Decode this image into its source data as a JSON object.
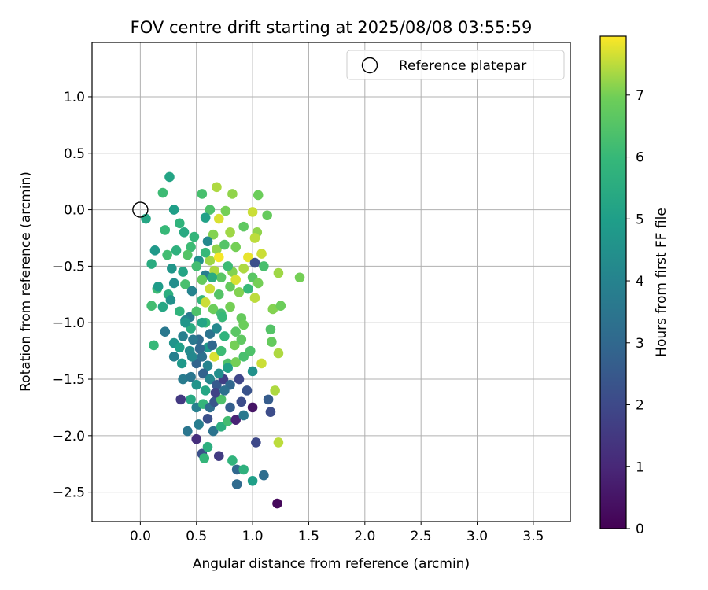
{
  "chart_data": {
    "type": "scatter",
    "title": "FOV centre drift starting at 2025/08/08 03:55:59",
    "xlabel": "Angular distance from reference (arcmin)",
    "ylabel": "Rotation from reference (arcmin)",
    "xlim": [
      -0.43,
      3.83
    ],
    "ylim": [
      -2.76,
      1.48
    ],
    "xticks": [
      "0.0",
      "0.5",
      "1.0",
      "1.5",
      "2.0",
      "2.5",
      "3.0",
      "3.5"
    ],
    "yticks": [
      "1.0",
      "0.5",
      "0.0",
      "−0.5",
      "−1.0",
      "−1.5",
      "−2.0",
      "−2.5"
    ],
    "grid": true,
    "legend": {
      "position": "top-right",
      "entries": [
        "Reference platepar"
      ]
    },
    "reference_point": {
      "x": 0.0,
      "y": 0.0
    },
    "colorbar": {
      "label": "Hours from first FF file",
      "range": [
        0,
        7.95
      ],
      "ticks": [
        "0",
        "1",
        "2",
        "3",
        "4",
        "5",
        "6",
        "7"
      ],
      "colormap": "viridis"
    },
    "points": [
      [
        0.26,
        0.29,
        5.2
      ],
      [
        0.2,
        0.15,
        6.1
      ],
      [
        0.55,
        0.14,
        6.3
      ],
      [
        0.68,
        0.2,
        7.4
      ],
      [
        0.82,
        0.14,
        7.2
      ],
      [
        1.05,
        0.13,
        6.9
      ],
      [
        0.3,
        0.0,
        5.0
      ],
      [
        0.62,
        0.0,
        6.4
      ],
      [
        0.76,
        -0.01,
        7.0
      ],
      [
        1.0,
        -0.02,
        7.6
      ],
      [
        1.13,
        -0.05,
        6.8
      ],
      [
        0.05,
        -0.08,
        5.3
      ],
      [
        0.58,
        -0.07,
        5.1
      ],
      [
        0.7,
        -0.08,
        7.7
      ],
      [
        0.35,
        -0.12,
        5.8
      ],
      [
        0.22,
        -0.18,
        6.0
      ],
      [
        0.39,
        -0.2,
        5.4
      ],
      [
        0.48,
        -0.24,
        5.9
      ],
      [
        0.65,
        -0.22,
        7.1
      ],
      [
        0.8,
        -0.2,
        7.3
      ],
      [
        0.92,
        -0.15,
        6.7
      ],
      [
        1.04,
        -0.2,
        7.2
      ],
      [
        1.02,
        -0.25,
        7.5
      ],
      [
        0.13,
        -0.36,
        4.8
      ],
      [
        0.24,
        -0.4,
        6.2
      ],
      [
        0.32,
        -0.36,
        5.7
      ],
      [
        0.45,
        -0.33,
        6.1
      ],
      [
        0.52,
        -0.45,
        4.5
      ],
      [
        0.6,
        -0.28,
        4.2
      ],
      [
        0.68,
        -0.35,
        7.2
      ],
      [
        0.75,
        -0.31,
        6.5
      ],
      [
        0.85,
        -0.33,
        7.0
      ],
      [
        0.96,
        -0.42,
        7.8
      ],
      [
        1.08,
        -0.39,
        7.6
      ],
      [
        0.1,
        -0.48,
        5.5
      ],
      [
        0.28,
        -0.52,
        4.7
      ],
      [
        0.38,
        -0.55,
        5.2
      ],
      [
        0.5,
        -0.5,
        6.2
      ],
      [
        0.58,
        -0.58,
        3.8
      ],
      [
        0.66,
        -0.54,
        7.4
      ],
      [
        0.72,
        -0.6,
        6.6
      ],
      [
        0.82,
        -0.55,
        7.1
      ],
      [
        1.02,
        -0.47,
        2.2
      ],
      [
        1.1,
        -0.5,
        6.3
      ],
      [
        1.23,
        -0.56,
        7.3
      ],
      [
        1.42,
        -0.6,
        7.0
      ],
      [
        0.15,
        -0.7,
        6.1
      ],
      [
        0.25,
        -0.75,
        5.6
      ],
      [
        0.3,
        -0.65,
        4.4
      ],
      [
        0.4,
        -0.66,
        6.3
      ],
      [
        0.46,
        -0.72,
        4.0
      ],
      [
        0.55,
        -0.8,
        5.9
      ],
      [
        0.62,
        -0.7,
        7.6
      ],
      [
        0.7,
        -0.75,
        6.5
      ],
      [
        0.8,
        -0.68,
        6.8
      ],
      [
        0.88,
        -0.73,
        7.1
      ],
      [
        0.96,
        -0.7,
        6.0
      ],
      [
        1.02,
        -0.78,
        7.5
      ],
      [
        0.1,
        -0.85,
        6.2
      ],
      [
        0.2,
        -0.86,
        5.3
      ],
      [
        0.27,
        -0.8,
        4.5
      ],
      [
        0.35,
        -0.9,
        5.8
      ],
      [
        0.44,
        -0.95,
        3.7
      ],
      [
        0.5,
        -0.9,
        6.4
      ],
      [
        0.58,
        -0.82,
        7.6
      ],
      [
        0.65,
        -0.88,
        6.9
      ],
      [
        0.72,
        -0.92,
        6.2
      ],
      [
        0.8,
        -0.86,
        7.0
      ],
      [
        0.9,
        -0.96,
        6.8
      ],
      [
        1.18,
        -0.88,
        7.1
      ],
      [
        1.25,
        -0.85,
        6.9
      ],
      [
        0.12,
        -1.2,
        6.0
      ],
      [
        0.22,
        -1.08,
        3.6
      ],
      [
        0.3,
        -1.18,
        4.6
      ],
      [
        0.38,
        -1.12,
        3.9
      ],
      [
        0.45,
        -1.05,
        5.5
      ],
      [
        0.52,
        -1.15,
        3.1
      ],
      [
        0.58,
        -1.0,
        6.0
      ],
      [
        0.62,
        -1.1,
        3.4
      ],
      [
        0.68,
        -1.05,
        4.2
      ],
      [
        0.75,
        -1.12,
        5.8
      ],
      [
        0.85,
        -1.08,
        6.6
      ],
      [
        0.92,
        -1.02,
        6.9
      ],
      [
        1.16,
        -1.06,
        6.5
      ],
      [
        1.17,
        -1.17,
        6.8
      ],
      [
        0.3,
        -1.3,
        3.9
      ],
      [
        0.37,
        -1.36,
        4.8
      ],
      [
        0.44,
        -1.25,
        4.3
      ],
      [
        0.5,
        -1.36,
        2.9
      ],
      [
        0.55,
        -1.3,
        3.3
      ],
      [
        0.6,
        -1.38,
        4.0
      ],
      [
        0.66,
        -1.3,
        7.7
      ],
      [
        0.72,
        -1.25,
        6.1
      ],
      [
        0.78,
        -1.36,
        6.4
      ],
      [
        0.85,
        -1.35,
        7.0
      ],
      [
        0.92,
        -1.3,
        6.3
      ],
      [
        1.0,
        -1.43,
        4.5
      ],
      [
        1.08,
        -1.36,
        7.6
      ],
      [
        1.23,
        -1.27,
        7.4
      ],
      [
        0.38,
        -1.5,
        3.7
      ],
      [
        0.45,
        -1.48,
        3.5
      ],
      [
        0.5,
        -1.55,
        4.6
      ],
      [
        0.56,
        -1.45,
        2.8
      ],
      [
        0.62,
        -1.5,
        4.1
      ],
      [
        0.68,
        -1.55,
        2.5
      ],
      [
        0.74,
        -1.5,
        1.7
      ],
      [
        0.8,
        -1.55,
        3.0
      ],
      [
        0.88,
        -1.5,
        1.9
      ],
      [
        0.36,
        -1.68,
        1.5
      ],
      [
        0.45,
        -1.68,
        5.4
      ],
      [
        0.5,
        -1.75,
        3.9
      ],
      [
        0.56,
        -1.72,
        5.9
      ],
      [
        0.62,
        -1.75,
        3.2
      ],
      [
        0.66,
        -1.7,
        2.4
      ],
      [
        0.72,
        -1.68,
        6.4
      ],
      [
        0.8,
        -1.75,
        2.7
      ],
      [
        0.9,
        -1.7,
        2.1
      ],
      [
        1.0,
        -1.75,
        0.5
      ],
      [
        1.14,
        -1.68,
        2.6
      ],
      [
        1.2,
        -1.6,
        7.4
      ],
      [
        0.42,
        -1.96,
        3.5
      ],
      [
        0.52,
        -1.9,
        3.8
      ],
      [
        0.6,
        -1.85,
        2.2
      ],
      [
        0.65,
        -1.96,
        3.4
      ],
      [
        0.72,
        -1.92,
        5.6
      ],
      [
        0.78,
        -1.87,
        6.2
      ],
      [
        0.85,
        -1.86,
        0.9
      ],
      [
        0.92,
        -1.82,
        3.6
      ],
      [
        1.03,
        -2.06,
        2.0
      ],
      [
        1.16,
        -1.79,
        2.1
      ],
      [
        1.23,
        -2.06,
        7.5
      ],
      [
        0.5,
        -2.03,
        1.2
      ],
      [
        0.55,
        -2.16,
        2.2
      ],
      [
        0.57,
        -2.2,
        5.9
      ],
      [
        0.6,
        -2.1,
        5.6
      ],
      [
        0.7,
        -2.18,
        1.6
      ],
      [
        0.82,
        -2.22,
        5.8
      ],
      [
        0.86,
        -2.3,
        3.0
      ],
      [
        0.92,
        -2.3,
        5.7
      ],
      [
        0.86,
        -2.43,
        3.1
      ],
      [
        1.0,
        -2.4,
        5.0
      ],
      [
        1.1,
        -2.35,
        3.2
      ],
      [
        1.22,
        -2.6,
        0.2
      ],
      [
        0.16,
        -0.68,
        4.9
      ],
      [
        0.42,
        -0.4,
        6.5
      ],
      [
        0.55,
        -0.62,
        6.8
      ],
      [
        0.62,
        -0.45,
        7.3
      ],
      [
        0.7,
        -0.42,
        7.9
      ],
      [
        0.78,
        -0.5,
        6.1
      ],
      [
        0.85,
        -0.62,
        7.7
      ],
      [
        0.92,
        -0.52,
        7.4
      ],
      [
        1.0,
        -0.6,
        6.6
      ],
      [
        1.05,
        -0.65,
        7.0
      ],
      [
        0.4,
        -0.98,
        4.1
      ],
      [
        0.47,
        -1.15,
        3.6
      ],
      [
        0.55,
        -1.0,
        5.2
      ],
      [
        0.6,
        -1.22,
        4.8
      ],
      [
        0.64,
        -1.2,
        3.0
      ],
      [
        0.7,
        -1.45,
        4.4
      ],
      [
        0.78,
        -1.4,
        5.1
      ],
      [
        0.84,
        -1.2,
        7.0
      ],
      [
        0.9,
        -1.15,
        6.7
      ],
      [
        0.95,
        -1.6,
        2.3
      ],
      [
        0.98,
        -1.25,
        6.4
      ],
      [
        0.35,
        -1.22,
        5.0
      ],
      [
        0.4,
        -1.0,
        4.7
      ],
      [
        0.58,
        -1.6,
        5.3
      ],
      [
        0.67,
        -1.62,
        1.8
      ],
      [
        0.75,
        -1.6,
        3.3
      ],
      [
        0.46,
        -1.3,
        4.2
      ],
      [
        0.53,
        -1.23,
        3.0
      ],
      [
        0.58,
        -0.38,
        6.0
      ],
      [
        0.64,
        -0.6,
        5.5
      ],
      [
        0.73,
        -0.95,
        6.0
      ]
    ]
  }
}
